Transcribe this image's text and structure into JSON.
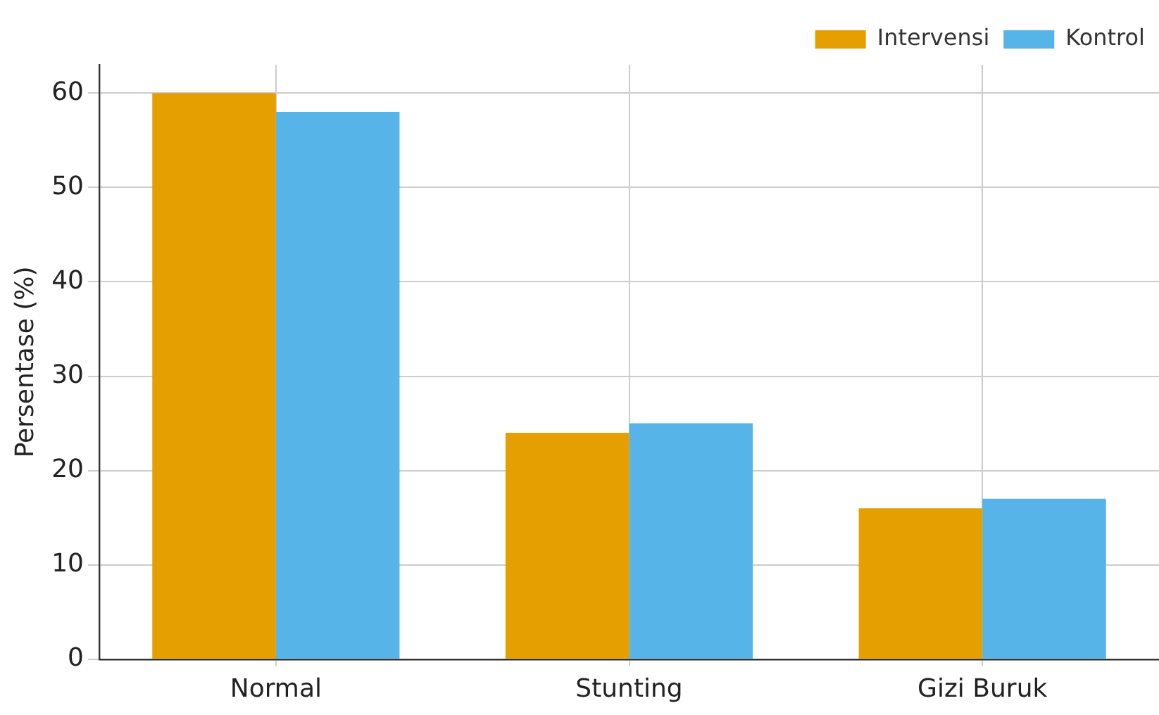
{
  "chart_data": {
    "type": "bar",
    "ylabel": "Persentase (%)",
    "categories": [
      "Normal",
      "Stunting",
      "Gizi Buruk"
    ],
    "series": [
      {
        "name": "Intervensi",
        "color": "#e69f00",
        "values": [
          60,
          24,
          16
        ]
      },
      {
        "name": "Kontrol",
        "color": "#56b4e9",
        "values": [
          58,
          25,
          17
        ]
      }
    ],
    "ylim": [
      0,
      63
    ],
    "yticks": [
      0,
      10,
      20,
      30,
      40,
      50,
      60
    ],
    "grid": true,
    "legend": "top right"
  }
}
